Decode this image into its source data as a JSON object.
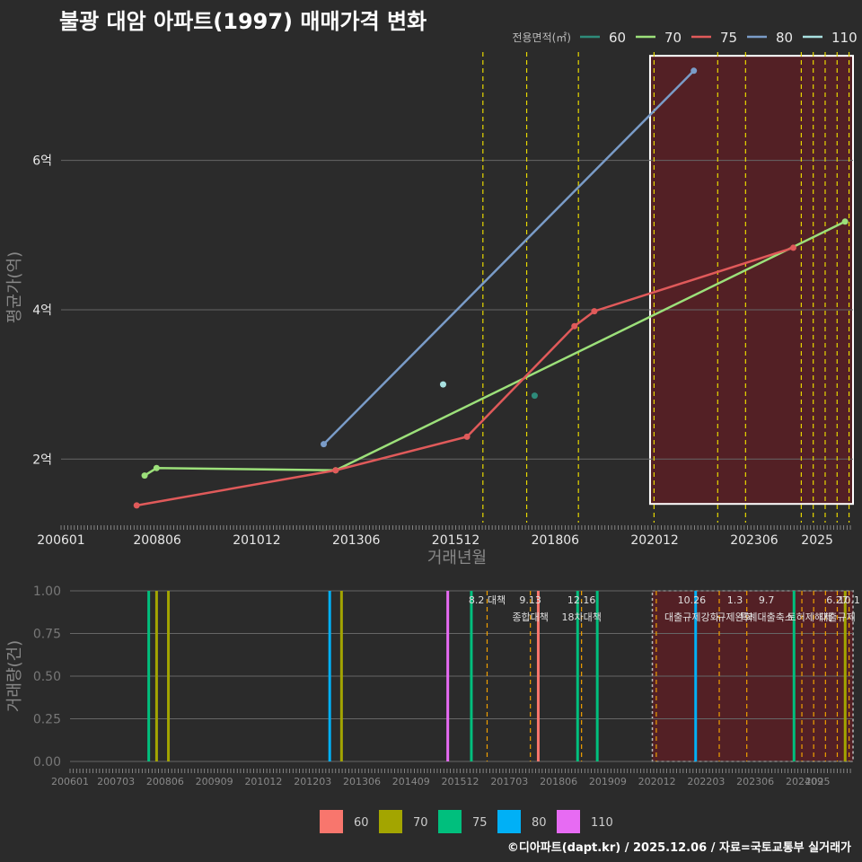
{
  "title": "불광 대암 아파트(1997) 매매가격 변화",
  "credit": "©디아파트(dapt.kr) / 2025.12.06 / 자료=국토교통부 실거래가",
  "colors": {
    "60": "#f8766d",
    "70": "#a3a500",
    "75": "#00bf7d",
    "80": "#00b0f6",
    "110": "#e76bf3"
  },
  "line_colors": {
    "60": "#2e8b7a",
    "70": "#9ce07a",
    "75": "#e05a5a",
    "80": "#7a9cc8",
    "110": "#a8e0e0"
  },
  "chart_data": [
    {
      "type": "line",
      "title": "불광 대암 아파트(1997) 매매가격 변화",
      "xlabel": "거래년월",
      "ylabel": "평균가(억)",
      "xlim": [
        2006.0,
        2025.9
      ],
      "ylim": [
        1.15,
        7.45
      ],
      "x_ticks": [
        "200601",
        "200806",
        "201012",
        "201306",
        "201512",
        "201806",
        "202012",
        "202306",
        "2025"
      ],
      "y_ticks": [
        {
          "v": 2,
          "label": "2억"
        },
        {
          "v": 4,
          "label": "4억"
        },
        {
          "v": 6,
          "label": "6억"
        }
      ],
      "legend_title": "전용면적(㎡)",
      "legend": [
        "60",
        "70",
        "75",
        "80",
        "110"
      ],
      "series": [
        {
          "name": "60",
          "lines": false,
          "points": [
            [
              2017.9,
              2.85
            ]
          ]
        },
        {
          "name": "70",
          "lines": true,
          "points": [
            [
              2008.1,
              1.78
            ],
            [
              2008.4,
              1.88
            ],
            [
              2012.9,
              1.85
            ],
            [
              2025.7,
              5.18
            ]
          ]
        },
        {
          "name": "75",
          "lines": true,
          "points": [
            [
              2007.9,
              1.38
            ],
            [
              2012.9,
              1.85
            ],
            [
              2016.2,
              2.3
            ],
            [
              2018.9,
              3.78
            ],
            [
              2019.4,
              3.98
            ],
            [
              2024.4,
              4.83
            ]
          ]
        },
        {
          "name": "80",
          "lines": true,
          "points": [
            [
              2012.6,
              2.2
            ],
            [
              2021.9,
              7.2
            ]
          ]
        },
        {
          "name": "110",
          "lines": false,
          "points": [
            [
              2015.6,
              3.0
            ]
          ]
        }
      ],
      "highlight": {
        "x0": 2020.8,
        "x1": 2025.9,
        "y0": 1.4,
        "y1": 7.4
      },
      "policy_lines": [
        2016.6,
        2017.7,
        2019.0,
        2020.9,
        2022.5,
        2023.2,
        2024.6,
        2024.9,
        2025.2,
        2025.5,
        2025.8
      ]
    },
    {
      "type": "bar",
      "ylabel": "거래량(건)",
      "xlim": [
        2006.0,
        2025.9
      ],
      "ylim": [
        0,
        1
      ],
      "x_ticks": [
        "200601",
        "200703",
        "200806",
        "200909",
        "201012",
        "201203",
        "201306",
        "201409",
        "201512",
        "201703",
        "201806",
        "201909",
        "202012",
        "202203",
        "202306",
        "202409",
        "2025"
      ],
      "y_ticks": [
        "0.00",
        "0.25",
        "0.50",
        "0.75",
        "1.00"
      ],
      "bars": [
        {
          "x": 2008.0,
          "area": "75"
        },
        {
          "x": 2008.2,
          "area": "70"
        },
        {
          "x": 2008.5,
          "area": "70"
        },
        {
          "x": 2012.6,
          "area": "80"
        },
        {
          "x": 2012.9,
          "area": "70"
        },
        {
          "x": 2015.6,
          "area": "110"
        },
        {
          "x": 2016.2,
          "area": "75"
        },
        {
          "x": 2017.9,
          "area": "60"
        },
        {
          "x": 2018.9,
          "area": "75"
        },
        {
          "x": 2019.4,
          "area": "75"
        },
        {
          "x": 2021.9,
          "area": "80"
        },
        {
          "x": 2024.4,
          "area": "75"
        },
        {
          "x": 2025.7,
          "area": "70"
        }
      ],
      "annotations": [
        {
          "x": 2016.6,
          "lines": [
            "8.2 대책"
          ]
        },
        {
          "x": 2017.7,
          "lines": [
            "9.13",
            "종합대책"
          ]
        },
        {
          "x": 2019.0,
          "lines": [
            "12.16",
            "18차대책"
          ]
        },
        {
          "x": 2021.8,
          "lines": [
            "10.26",
            "대출규제강화"
          ]
        },
        {
          "x": 2022.9,
          "lines": [
            "1.3",
            "규제완화"
          ]
        },
        {
          "x": 2023.7,
          "lines": [
            "9.7",
            "특례대출축소"
          ]
        },
        {
          "x": 2024.8,
          "lines": [
            "",
            "토허제해제"
          ]
        },
        {
          "x": 2025.5,
          "lines": [
            "6.27",
            "대출규제"
          ]
        },
        {
          "x": 2025.8,
          "lines": [
            "10.1",
            ""
          ]
        }
      ],
      "legend": [
        "60",
        "70",
        "75",
        "80",
        "110"
      ]
    }
  ]
}
